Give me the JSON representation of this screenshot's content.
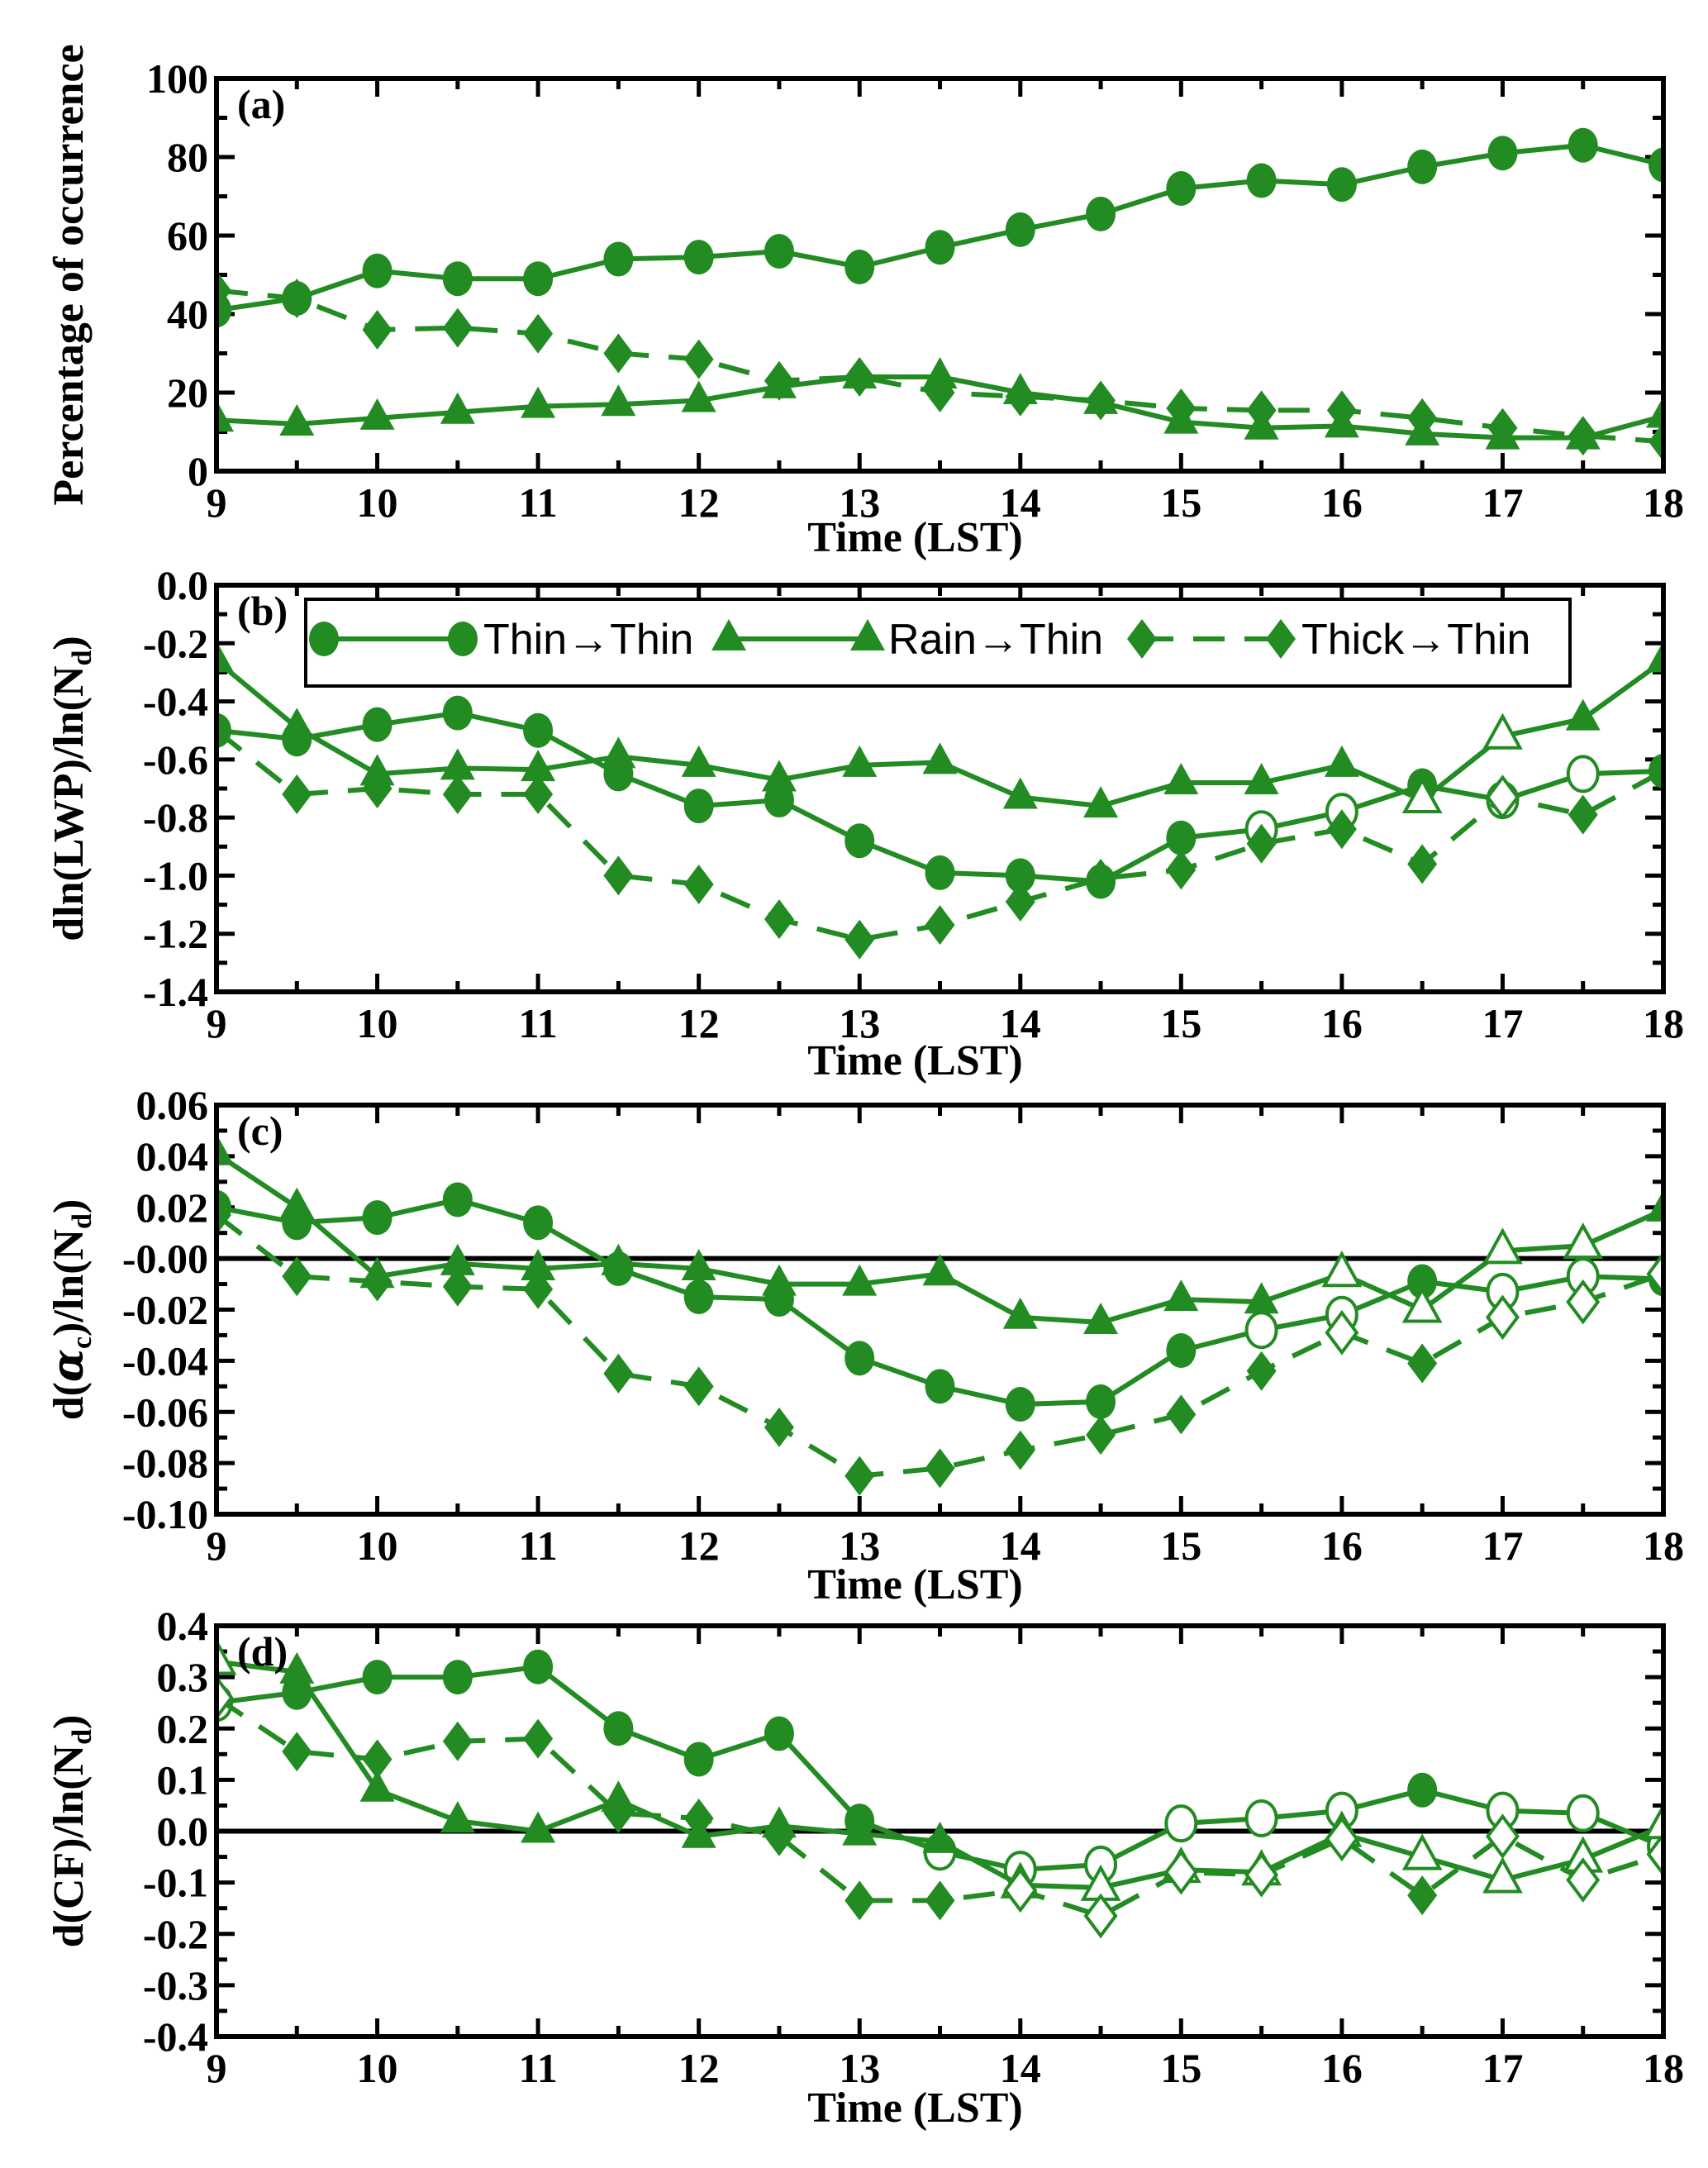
{
  "chart_data": {
    "type": "line",
    "color": "#228B22",
    "x": [
      9,
      9.5,
      10,
      10.5,
      11,
      11.5,
      12,
      12.5,
      13,
      13.5,
      14,
      14.5,
      15,
      15.5,
      16,
      16.5,
      17,
      17.5,
      18
    ],
    "xticks": [
      "9",
      "10",
      "11",
      "12",
      "13",
      "14",
      "15",
      "16",
      "17",
      "18"
    ],
    "xlim": [
      9,
      18
    ],
    "xlabel": "Time (LST)",
    "legend": {
      "placement": "top-inside-panel-b",
      "entries": [
        {
          "name": "Thin→Thin",
          "marker": "circle",
          "dash": "solid"
        },
        {
          "name": "Rain→Thin",
          "marker": "triangle",
          "dash": "solid"
        },
        {
          "name": "Thick→Thin",
          "marker": "diamond",
          "dash": "dashed"
        }
      ]
    },
    "panels": [
      {
        "label": "(a)",
        "ylabel": [
          {
            "t": "Percentage of occurrence"
          }
        ],
        "ylim": [
          0,
          100
        ],
        "yticks": [
          0,
          20,
          40,
          60,
          80,
          100
        ],
        "ytick_labels": [
          "0",
          "20",
          "40",
          "60",
          "80",
          "100"
        ],
        "zero_line": false,
        "series": [
          {
            "name": "Thin→Thin",
            "values": [
              41,
              44,
              51,
              49,
              49,
              54,
              54.5,
              56,
              52,
              57,
              61.5,
              65.5,
              72,
              74,
              73,
              77.5,
              81,
              83,
              78
            ],
            "filled": [
              1,
              1,
              1,
              1,
              1,
              1,
              1,
              1,
              1,
              1,
              1,
              1,
              1,
              1,
              1,
              1,
              1,
              1,
              1
            ]
          },
          {
            "name": "Rain→Thin",
            "values": [
              13,
              12,
              13.5,
              15,
              16.5,
              17,
              18,
              21.5,
              24,
              24,
              20,
              17.5,
              12.5,
              11,
              11.5,
              9.5,
              8.5,
              8.5,
              14
            ],
            "filled": [
              1,
              1,
              1,
              1,
              1,
              1,
              1,
              1,
              1,
              1,
              1,
              1,
              1,
              1,
              1,
              1,
              1,
              1,
              1
            ]
          },
          {
            "name": "Thick→Thin",
            "values": [
              46,
              44,
              36,
              36.5,
              35,
              30,
              28.5,
              23,
              24,
              20,
              19,
              18,
              16,
              15.5,
              15.5,
              13.5,
              11,
              9,
              7.5
            ],
            "filled": [
              1,
              1,
              1,
              1,
              1,
              1,
              1,
              1,
              1,
              1,
              1,
              1,
              1,
              1,
              1,
              1,
              1,
              1,
              1
            ]
          }
        ]
      },
      {
        "label": "(b)",
        "ylabel": [
          {
            "t": "dln(LWP)/ln(N"
          },
          {
            "t": "d",
            "sub": true
          },
          {
            "t": ")"
          }
        ],
        "ylim": [
          -1.4,
          0
        ],
        "yticks": [
          -1.4,
          -1.2,
          -1.0,
          -0.8,
          -0.6,
          -0.4,
          -0.2,
          0.0
        ],
        "ytick_labels": [
          "-1.4",
          "-1.2",
          "-1.0",
          "-0.8",
          "-0.6",
          "-0.4",
          "-0.2",
          "0.0"
        ],
        "zero_line": false,
        "series": [
          {
            "name": "Thin→Thin",
            "values": [
              -0.5,
              -0.53,
              -0.48,
              -0.44,
              -0.5,
              -0.65,
              -0.76,
              -0.74,
              -0.88,
              -0.99,
              -1.0,
              -1.02,
              -0.87,
              -0.84,
              -0.78,
              -0.69,
              -0.74,
              -0.65,
              -0.64
            ],
            "filled": [
              1,
              1,
              1,
              1,
              1,
              1,
              1,
              1,
              1,
              1,
              1,
              1,
              1,
              0,
              0,
              1,
              0,
              0,
              1
            ]
          },
          {
            "name": "Rain→Thin",
            "values": [
              -0.26,
              -0.49,
              -0.65,
              -0.63,
              -0.635,
              -0.59,
              -0.62,
              -0.67,
              -0.62,
              -0.61,
              -0.73,
              -0.76,
              -0.68,
              -0.68,
              -0.62,
              -0.74,
              -0.52,
              -0.46,
              -0.26
            ],
            "filled": [
              1,
              1,
              1,
              1,
              1,
              1,
              1,
              1,
              1,
              1,
              1,
              1,
              1,
              1,
              1,
              0,
              0,
              1,
              1
            ]
          },
          {
            "name": "Thick→Thin",
            "values": [
              -0.5,
              -0.72,
              -0.7,
              -0.72,
              -0.72,
              -1.0,
              -1.03,
              -1.15,
              -1.22,
              -1.17,
              -1.09,
              -1.01,
              -0.98,
              -0.89,
              -0.84,
              -0.96,
              -0.73,
              -0.79,
              -0.64
            ],
            "filled": [
              1,
              1,
              1,
              1,
              1,
              1,
              1,
              1,
              1,
              1,
              1,
              1,
              1,
              1,
              1,
              1,
              0,
              1,
              1
            ]
          }
        ]
      },
      {
        "label": "(c)",
        "ylabel": [
          {
            "t": "d("
          },
          {
            "t": "α",
            "italic": true
          },
          {
            "t": "c",
            "sub": true
          },
          {
            "t": ")/ln(N"
          },
          {
            "t": "d",
            "sub": true
          },
          {
            "t": ")"
          }
        ],
        "ylim": [
          -0.1,
          0.06
        ],
        "yticks": [
          -0.1,
          -0.08,
          -0.06,
          -0.04,
          -0.02,
          0.0,
          0.02,
          0.04,
          0.06
        ],
        "ytick_labels": [
          "-0.10",
          "-0.08",
          "-0.06",
          "-0.04",
          "-0.02",
          "-0.00",
          "0.02",
          "0.04",
          "0.06"
        ],
        "zero_line": true,
        "series": [
          {
            "name": "Thin→Thin",
            "values": [
              0.02,
              0.014,
              0.016,
              0.023,
              0.014,
              -0.004,
              -0.015,
              -0.016,
              -0.039,
              -0.05,
              -0.057,
              -0.056,
              -0.036,
              -0.028,
              -0.022,
              -0.009,
              -0.013,
              -0.007,
              -0.008
            ],
            "filled": [
              1,
              1,
              1,
              1,
              1,
              1,
              1,
              1,
              1,
              1,
              1,
              1,
              1,
              0,
              0,
              1,
              0,
              0,
              1
            ]
          },
          {
            "name": "Rain→Thin",
            "values": [
              0.041,
              0.02,
              -0.007,
              -0.002,
              -0.004,
              -0.002,
              -0.004,
              -0.01,
              -0.01,
              -0.006,
              -0.023,
              -0.025,
              -0.016,
              -0.017,
              -0.006,
              -0.02,
              0.003,
              0.005,
              0.019
            ],
            "filled": [
              1,
              1,
              1,
              1,
              1,
              1,
              1,
              1,
              1,
              1,
              1,
              1,
              1,
              1,
              0,
              0,
              0,
              0,
              1
            ]
          },
          {
            "name": "Thick→Thin",
            "values": [
              0.017,
              -0.007,
              -0.009,
              -0.011,
              -0.012,
              -0.045,
              -0.05,
              -0.066,
              -0.085,
              -0.082,
              -0.075,
              -0.069,
              -0.061,
              -0.044,
              -0.029,
              -0.041,
              -0.023,
              -0.017,
              -0.006
            ],
            "filled": [
              1,
              1,
              1,
              1,
              1,
              1,
              1,
              1,
              1,
              1,
              1,
              1,
              1,
              1,
              0,
              1,
              0,
              0,
              0
            ]
          }
        ]
      },
      {
        "label": "(d)",
        "ylabel": [
          {
            "t": "d(CF)/ln(N"
          },
          {
            "t": "d",
            "sub": true
          },
          {
            "t": ")"
          }
        ],
        "ylim": [
          -0.4,
          0.4
        ],
        "yticks": [
          -0.4,
          -0.3,
          -0.2,
          -0.1,
          0.0,
          0.1,
          0.2,
          0.3,
          0.4
        ],
        "ytick_labels": [
          "-0.4",
          "-0.3",
          "-0.2",
          "-0.1",
          "0.0",
          "0.1",
          "0.2",
          "0.3",
          "0.4"
        ],
        "zero_line": true,
        "series": [
          {
            "name": "Thin→Thin",
            "values": [
              0.25,
              0.27,
              0.3,
              0.3,
              0.32,
              0.2,
              0.14,
              0.19,
              0.02,
              -0.04,
              -0.075,
              -0.065,
              0.015,
              0.025,
              0.04,
              0.08,
              0.04,
              0.035,
              -0.03
            ],
            "filled": [
              0,
              1,
              1,
              1,
              1,
              1,
              1,
              1,
              1,
              0,
              0,
              0,
              0,
              0,
              0,
              1,
              0,
              0,
              0
            ]
          },
          {
            "name": "Rain→Thin",
            "values": [
              0.33,
              0.31,
              0.08,
              0.02,
              0.0,
              0.06,
              -0.01,
              0.01,
              -0.005,
              -0.02,
              -0.105,
              -0.11,
              -0.075,
              -0.08,
              -0.005,
              -0.05,
              -0.095,
              -0.055,
              0.01
            ],
            "filled": [
              0,
              1,
              1,
              1,
              1,
              1,
              1,
              1,
              1,
              1,
              0,
              0,
              0,
              0,
              0,
              0,
              0,
              0,
              0
            ]
          },
          {
            "name": "Thick→Thin",
            "values": [
              0.26,
              0.155,
              0.14,
              0.175,
              0.18,
              0.035,
              0.025,
              -0.01,
              -0.135,
              -0.135,
              -0.115,
              -0.165,
              -0.08,
              -0.085,
              -0.015,
              -0.125,
              -0.01,
              -0.095,
              -0.045
            ],
            "filled": [
              0,
              1,
              1,
              1,
              1,
              1,
              1,
              1,
              1,
              1,
              0,
              0,
              0,
              0,
              0,
              1,
              0,
              0,
              0
            ]
          }
        ]
      }
    ]
  }
}
